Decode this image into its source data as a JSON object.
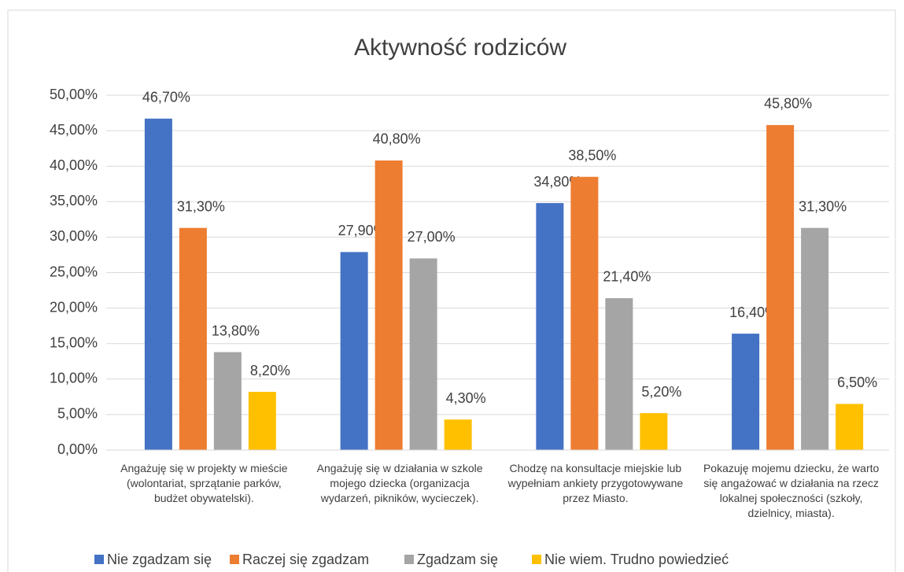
{
  "chart_data": {
    "type": "bar",
    "title": "Aktywność rodziców",
    "categories": [
      "Angażuję się w projekty w mieście (wolontariat, sprzątanie parków, budżet obywatelski).",
      "Angażuję się w działania w szkole mojego dziecka (organizacja wydarzeń, pikników, wycieczek).",
      "Chodzę na konsultacje miejskie lub wypełniam ankiety przygotowywane przez Miasto.",
      "Pokazuję mojemu dziecku, że warto się angażować w działania na rzecz lokalnej społeczności (szkoły, dzielnicy, miasta)."
    ],
    "series": [
      {
        "name": "Nie zgadzam się",
        "color": "#4472c4",
        "values": [
          46.7,
          27.9,
          34.8,
          16.4
        ],
        "value_labels": [
          "46,70%",
          "27,90%",
          "34,80%",
          "16,40%"
        ]
      },
      {
        "name": "Raczej się zgadzam",
        "color": "#ed7d31",
        "values": [
          31.3,
          40.8,
          38.5,
          45.8
        ],
        "value_labels": [
          "31,30%",
          "40,80%",
          "38,50%",
          "45,80%"
        ]
      },
      {
        "name": "Zgadzam się",
        "color": "#a5a5a5",
        "values": [
          13.8,
          27.0,
          21.4,
          31.3
        ],
        "value_labels": [
          "13,80%",
          "27,00%",
          "21,40%",
          "31,30%"
        ]
      },
      {
        "name": "Nie wiem. Trudno powiedzieć",
        "color": "#ffc000",
        "values": [
          8.2,
          4.3,
          5.2,
          6.5
        ],
        "value_labels": [
          "8,20%",
          "4,30%",
          "5,20%",
          "6,50%"
        ]
      }
    ],
    "ylim": [
      0,
      50
    ],
    "yticks": [
      {
        "value": 0,
        "label": "0,00%"
      },
      {
        "value": 5,
        "label": "5,00%"
      },
      {
        "value": 10,
        "label": "10,00%"
      },
      {
        "value": 15,
        "label": "15,00%"
      },
      {
        "value": 20,
        "label": "20,00%"
      },
      {
        "value": 25,
        "label": "25,00%"
      },
      {
        "value": 30,
        "label": "30,00%"
      },
      {
        "value": 35,
        "label": "35,00%"
      },
      {
        "value": 40,
        "label": "40,00%"
      },
      {
        "value": 45,
        "label": "45,00%"
      },
      {
        "value": 50,
        "label": "50,00%"
      }
    ],
    "grid": true,
    "legend": "bottom"
  }
}
